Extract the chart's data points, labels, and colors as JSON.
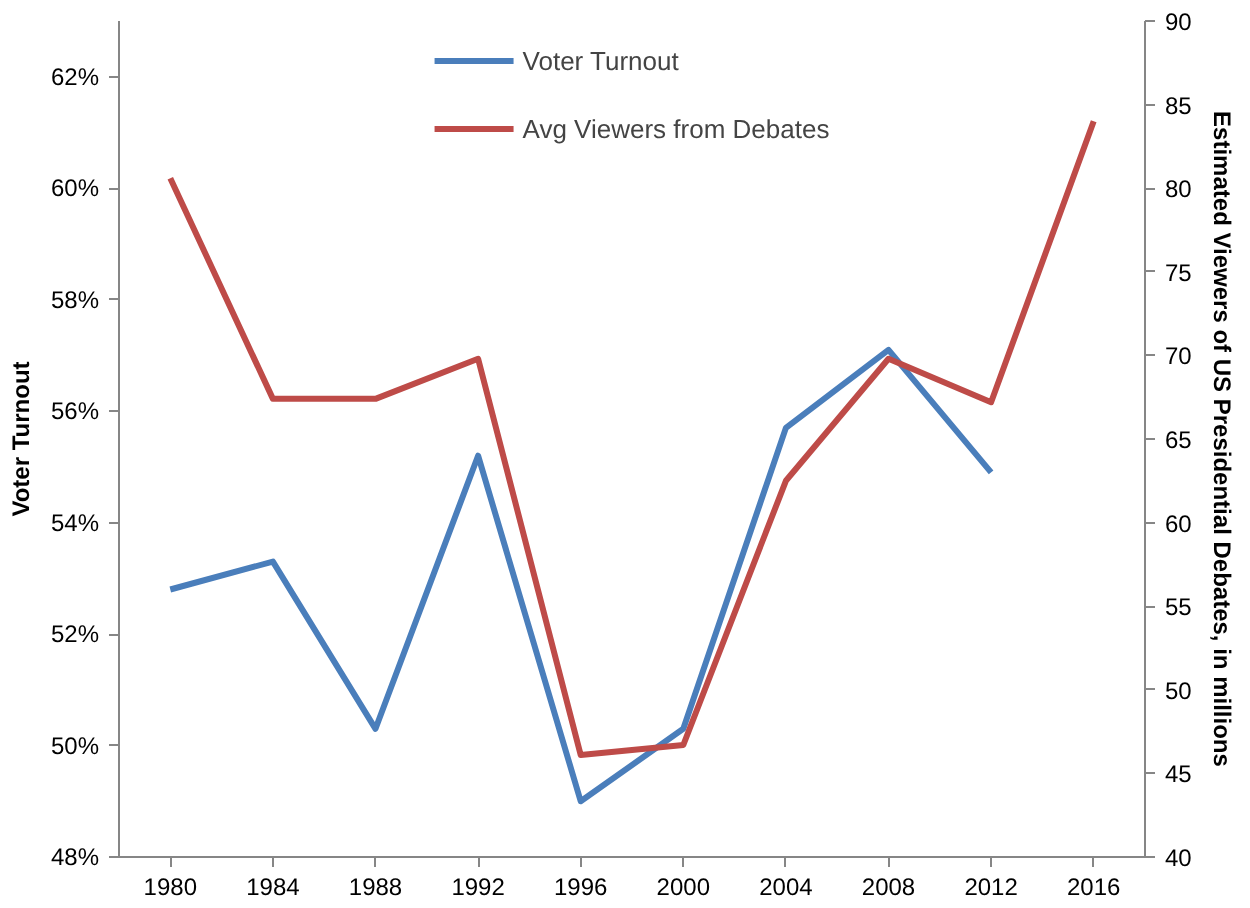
{
  "chart_data": {
    "type": "line",
    "categories": [
      "1980",
      "1984",
      "1988",
      "1992",
      "1996",
      "2000",
      "2004",
      "2008",
      "2012",
      "2016"
    ],
    "ylabel": "Voter Turnout",
    "y2label": "Estimated Viewers of US Presidential Debates, in millions",
    "ylim": [
      48,
      63
    ],
    "yticks": [
      {
        "value": 48,
        "label": "48%"
      },
      {
        "value": 50,
        "label": "50%"
      },
      {
        "value": 52,
        "label": "52%"
      },
      {
        "value": 54,
        "label": "54%"
      },
      {
        "value": 56,
        "label": "56%"
      },
      {
        "value": 58,
        "label": "58%"
      },
      {
        "value": 60,
        "label": "60%"
      },
      {
        "value": 62,
        "label": "62%"
      }
    ],
    "y2lim": [
      40,
      90
    ],
    "y2ticks": [
      40,
      45,
      50,
      55,
      60,
      65,
      70,
      75,
      80,
      85,
      90
    ],
    "series": [
      {
        "name": "Voter Turnout",
        "color": "#4a7ebb",
        "values": [
          52.8,
          53.3,
          50.3,
          55.2,
          49.0,
          50.3,
          55.7,
          57.1,
          54.9,
          null
        ]
      },
      {
        "name": "Avg Viewers from Debates",
        "color": "#be4b48",
        "axis": "y2",
        "values": [
          80.6,
          67.4,
          67.4,
          69.8,
          46.1,
          46.7,
          62.5,
          69.8,
          67.2,
          84.0
        ]
      }
    ],
    "grid": false,
    "legend": "top",
    "marker": "none",
    "line_style": "solid"
  }
}
